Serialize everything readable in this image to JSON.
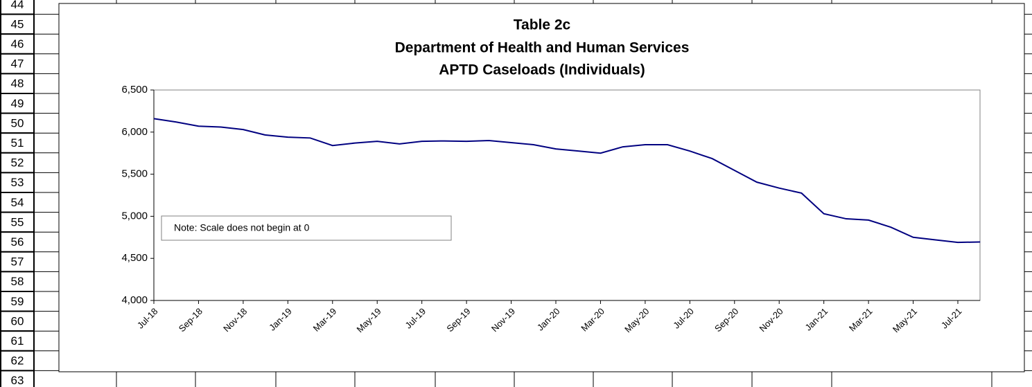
{
  "row_headers": [
    44,
    45,
    46,
    47,
    48,
    49,
    50,
    51,
    52,
    53,
    54,
    55,
    56,
    57,
    58,
    59,
    60,
    61,
    62,
    63
  ],
  "chart_data": {
    "type": "line",
    "title": [
      "Table 2c",
      "Department of Health and Human Services",
      "APTD Caseloads (Individuals)"
    ],
    "note": "Note:  Scale does not begin at 0",
    "categories": [
      "Jul-18",
      null,
      "Sep-18",
      null,
      "Nov-18",
      null,
      "Jan-19",
      null,
      "Mar-19",
      null,
      "May-19",
      null,
      "Jul-19",
      null,
      "Sep-19",
      null,
      "Nov-19",
      null,
      "Jan-20",
      null,
      "Mar-20",
      null,
      "May-20",
      null,
      "Jul-20",
      null,
      "Sep-20",
      null,
      "Nov-20",
      null,
      "Jan-21",
      null,
      "Mar-21",
      null,
      "May-21",
      null,
      "Jul-21",
      null
    ],
    "values": [
      6160,
      6120,
      6070,
      6060,
      6030,
      5965,
      5940,
      5930,
      5840,
      5870,
      5890,
      5860,
      5890,
      5895,
      5890,
      5900,
      5875,
      5850,
      5800,
      5775,
      5750,
      5825,
      5850,
      5850,
      5775,
      5685,
      5545,
      5405,
      5335,
      5275,
      5030,
      4970,
      4955,
      4870,
      4750,
      4720,
      4690,
      4695
    ],
    "color": "#000080",
    "ylim": [
      4000,
      6500
    ],
    "yticks": [
      {
        "value": 4000,
        "label": "4,000"
      },
      {
        "value": 4500,
        "label": "4,500"
      },
      {
        "value": 5000,
        "label": "5,000"
      },
      {
        "value": 5500,
        "label": "5,500"
      },
      {
        "value": 6000,
        "label": "6,000"
      },
      {
        "value": 6500,
        "label": "6,500"
      }
    ],
    "grid": false
  }
}
